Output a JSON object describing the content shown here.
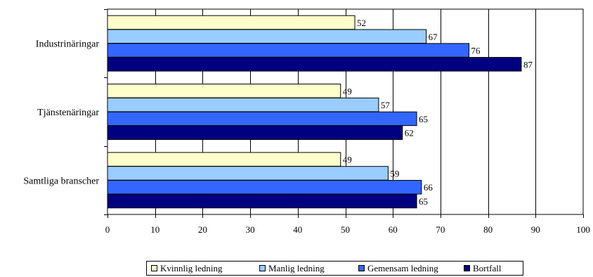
{
  "chart_data": {
    "type": "bar",
    "orientation": "horizontal",
    "title": "",
    "xlabel": "",
    "ylabel": "",
    "xlim": [
      0,
      100
    ],
    "x_ticks": [
      0,
      10,
      20,
      30,
      40,
      50,
      60,
      70,
      80,
      90,
      100
    ],
    "grid": true,
    "legend_position": "bottom",
    "categories": [
      "Industrinäringar",
      "Tjänstenäringar",
      "Samtliga branscher"
    ],
    "series": [
      {
        "name": "Kvinnlig ledning",
        "color": "#ffffcc",
        "values": [
          52,
          49,
          49
        ]
      },
      {
        "name": "Manlig ledning",
        "color": "#99ccff",
        "values": [
          67,
          57,
          59
        ]
      },
      {
        "name": "Gemensam ledning",
        "color": "#3366ff",
        "values": [
          76,
          65,
          66
        ]
      },
      {
        "name": "Bortfall",
        "color": "#000080",
        "values": [
          87,
          62,
          65
        ]
      }
    ]
  }
}
